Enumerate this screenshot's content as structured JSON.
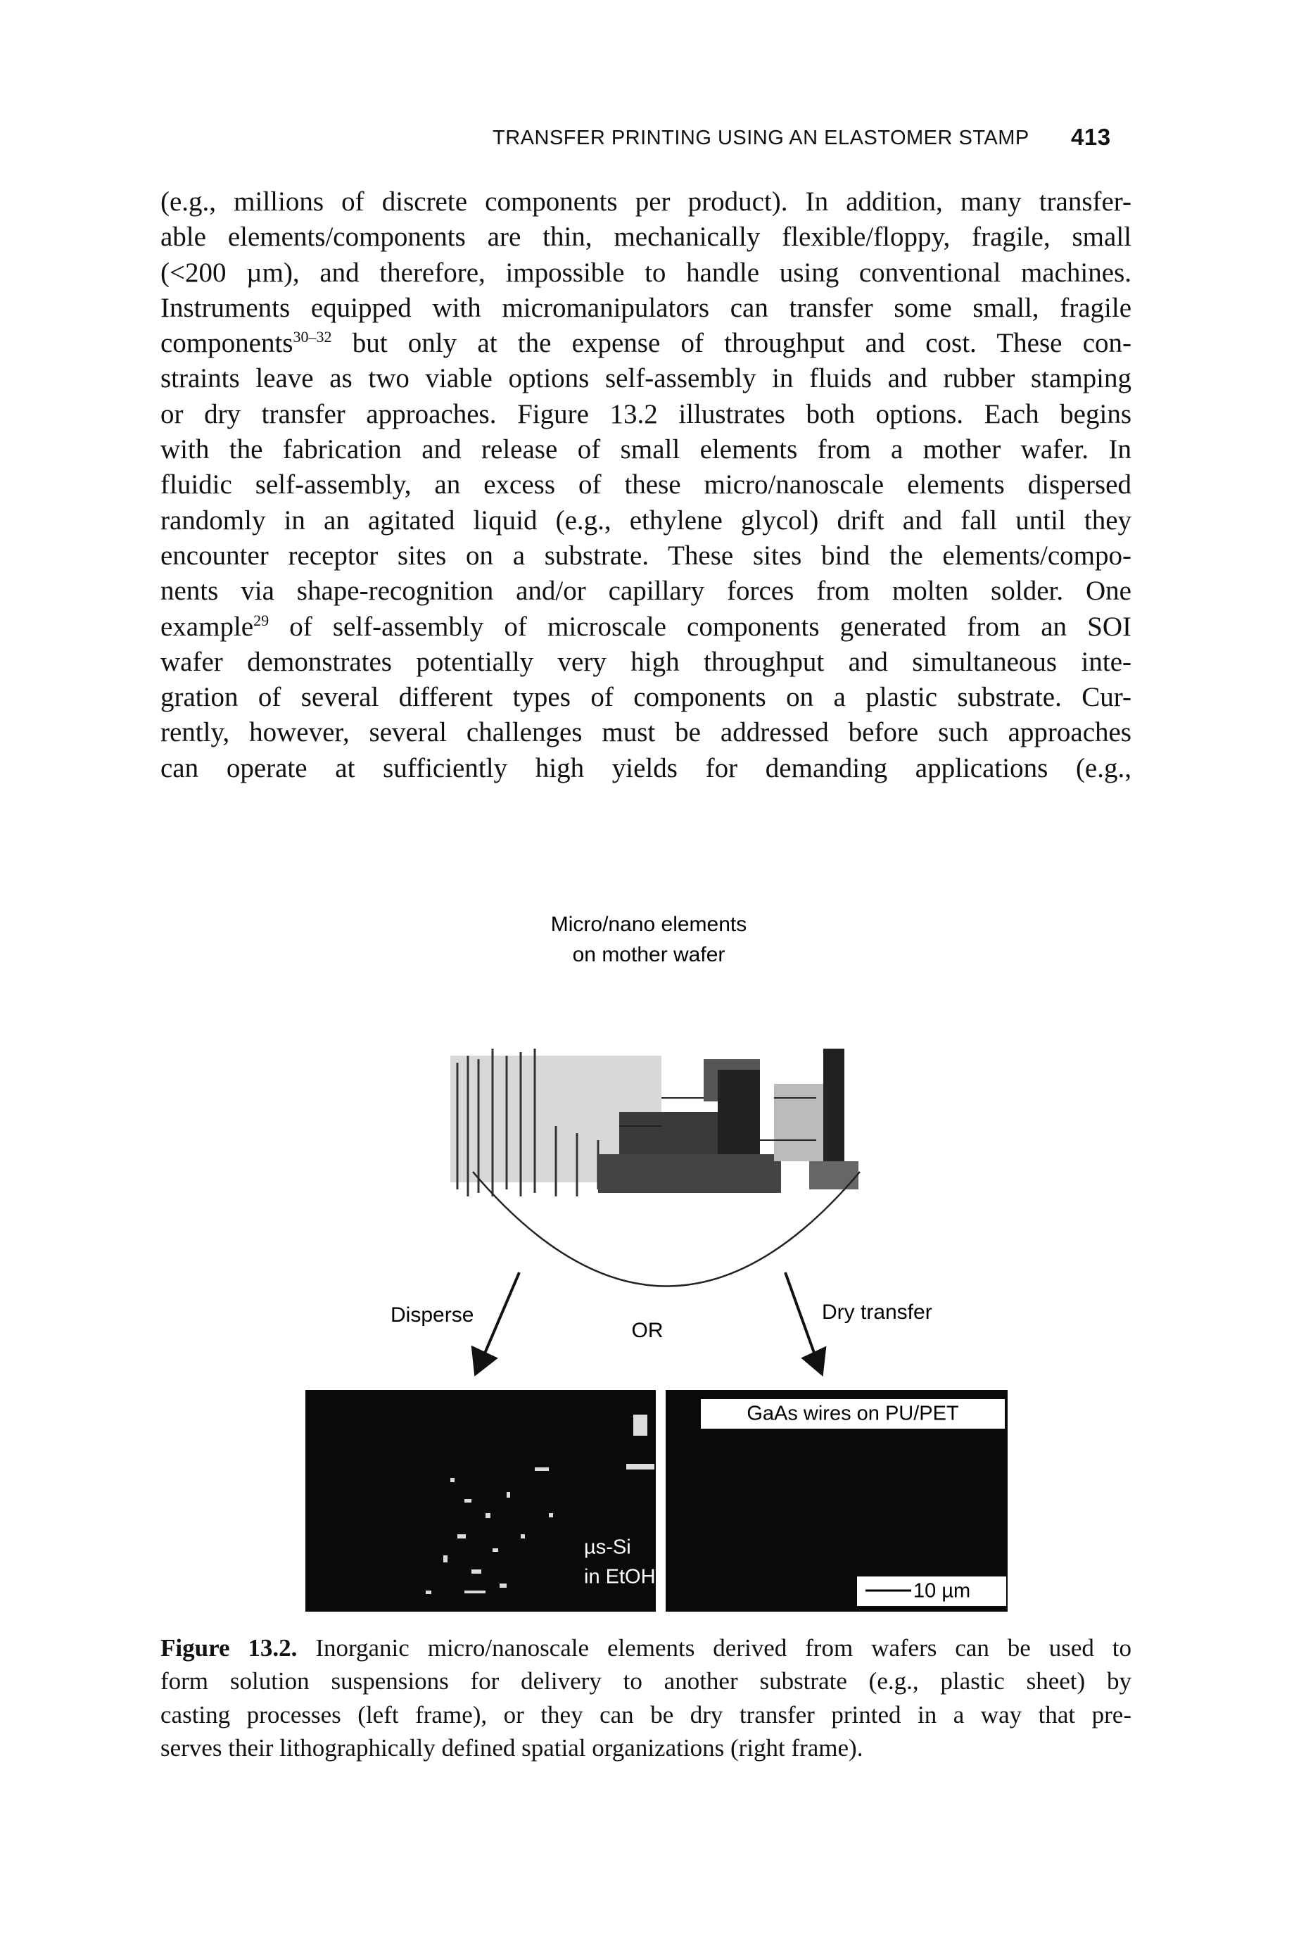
{
  "header": {
    "title": "TRANSFER PRINTING USING AN ELASTOMER STAMP",
    "page_number": "413"
  },
  "body": {
    "lines": [
      "(e.g., millions of discrete components per product). In addition, many transfer-",
      "able elements/components are thin, mechanically flexible/floppy, fragile, small",
      "(<200 µm), and therefore, impossible to handle using conventional machines.",
      "Instruments equipped with micromanipulators can transfer some small, fragile",
      [
        "components",
        "30–32",
        " but only at the expense of throughput and cost. These con-"
      ],
      "straints leave as two viable options self-assembly in fluids and rubber stamping",
      "or dry transfer approaches. Figure 13.2 illustrates both options. Each begins",
      "with the fabrication and release of small elements from a mother wafer. In",
      "fluidic self-assembly, an excess of these micro/nanoscale elements dispersed",
      "randomly in an agitated liquid (e.g., ethylene glycol) drift and fall until they",
      "encounter receptor sites on a substrate. These sites bind the elements/compo-",
      "nents via shape-recognition and/or capillary forces from molten solder. One",
      [
        "example",
        "29",
        " of self-assembly of microscale components generated from an SOI"
      ],
      "wafer demonstrates potentially very high throughput and simultaneous inte-",
      "gration of several different types of components on a plastic substrate. Cur-",
      "rently, however, several challenges must be addressed before such approaches",
      "can operate at sufficiently high yields for demanding applications (e.g.,"
    ]
  },
  "figure": {
    "title_lines": [
      "Micro/nano elements",
      "on mother wafer"
    ],
    "left_label": "Disperse",
    "center_label": "OR",
    "right_label": "Dry transfer",
    "left_panel": {
      "labels": [
        "µs-Si",
        "in EtOH"
      ]
    },
    "right_panel": {
      "title": "GaAs wires on PU/PET",
      "scale_bar": "10 µm"
    }
  },
  "caption": {
    "label": "Figure 13.2.",
    "lines": [
      " Inorganic micro/nanoscale elements derived from wafers can be used to",
      "form solution suspensions for delivery to another substrate (e.g., plastic sheet) by",
      "casting processes (left frame), or they can be dry transfer printed in a way that pre-",
      "serves their lithographically defined spatial organizations (right frame)."
    ]
  }
}
